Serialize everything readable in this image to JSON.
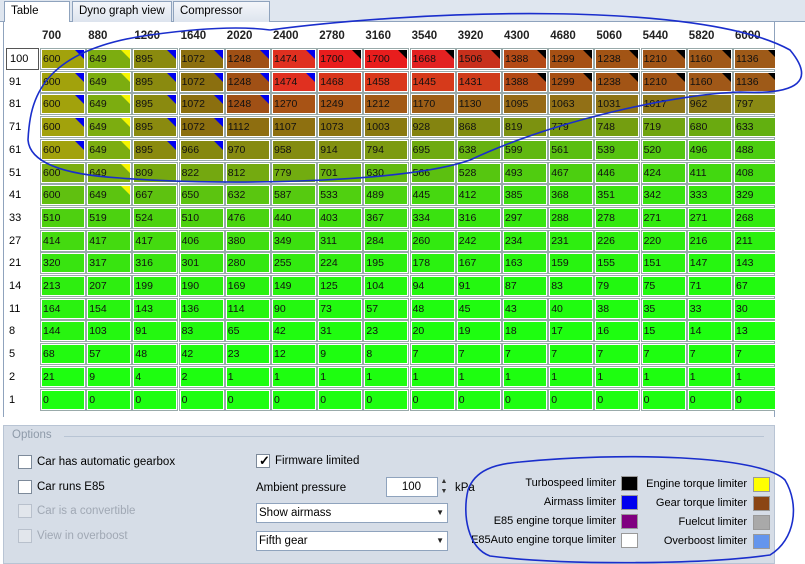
{
  "tabs": [
    "Table view",
    "Dyno graph view",
    "Compressor map"
  ],
  "active_tab": 0,
  "columns": [
    "700",
    "880",
    "1260",
    "1640",
    "2020",
    "2400",
    "2780",
    "3160",
    "3540",
    "3920",
    "4300",
    "4680",
    "5060",
    "5440",
    "5820",
    "6000"
  ],
  "rows": [
    {
      "label": "100",
      "values": [
        "600",
        "649",
        "895",
        "1072",
        "1248",
        "1474",
        "1700",
        "1700",
        "1668",
        "1506",
        "1388",
        "1299",
        "1238",
        "1210",
        "1160",
        "1136"
      ],
      "colors": [
        "#a2a20c",
        "#7cad10",
        "#8a8a0f",
        "#8b6f0f",
        "#a05015",
        "#e03020",
        "#e81d1d",
        "#e81d1d",
        "#e22222",
        "#c8301c",
        "#b34a16",
        "#a65014",
        "#a25415",
        "#a05416",
        "#a05818",
        "#9e5a18"
      ],
      "tris": [
        "#0000ee",
        "#f5f500",
        "#0000ee",
        "#0000ee",
        "#0000ee",
        "#0000ee",
        "#000000",
        "#000000",
        "#000000",
        "#000000",
        "#000000",
        "#000000",
        "#000000",
        "#000000",
        "#000000",
        "#000000"
      ]
    },
    {
      "label": "91",
      "values": [
        "600",
        "649",
        "895",
        "1072",
        "1248",
        "1474",
        "1468",
        "1458",
        "1445",
        "1431",
        "1388",
        "1299",
        "1238",
        "1210",
        "1160",
        "1136"
      ],
      "colors": [
        "#a2a20c",
        "#7cad10",
        "#8a8a0f",
        "#8b6f0f",
        "#a05015",
        "#e03020",
        "#d9361b",
        "#d9381b",
        "#d63a1b",
        "#d03c1b",
        "#b34a16",
        "#a65014",
        "#a25415",
        "#a05416",
        "#a05818",
        "#9e5a18"
      ],
      "tris": [
        "#0000ee",
        "#f5f500",
        "#0000ee",
        "#0000ee",
        "#0000ee",
        "#0000ee",
        "",
        "",
        "",
        "",
        "#000000",
        "#000000",
        "#000000",
        "#000000",
        "#000000",
        "#000000"
      ]
    },
    {
      "label": "81",
      "values": [
        "600",
        "649",
        "895",
        "1072",
        "1248",
        "1270",
        "1249",
        "1212",
        "1170",
        "1130",
        "1095",
        "1063",
        "1031",
        "1017",
        "962",
        "797"
      ],
      "colors": [
        "#a2a20c",
        "#7cad10",
        "#8a8a0f",
        "#8b6f0f",
        "#a05015",
        "#a85315",
        "#a65515",
        "#a25a16",
        "#9e5e16",
        "#9a6416",
        "#966a16",
        "#927016",
        "#8e7416",
        "#8c7616",
        "#8a7a16",
        "#8a8a14"
      ],
      "tris": [
        "#0000ee",
        "#f5f500",
        "#0000ee",
        "#0000ee",
        "#0000ee",
        "",
        "",
        "",
        "",
        "",
        "",
        "",
        "",
        "",
        "",
        ""
      ]
    },
    {
      "label": "71",
      "values": [
        "600",
        "649",
        "895",
        "1072",
        "1112",
        "1107",
        "1073",
        "1003",
        "928",
        "868",
        "819",
        "779",
        "748",
        "719",
        "680",
        "633"
      ],
      "colors": [
        "#a2a20c",
        "#7cad10",
        "#8a8a0f",
        "#8b6f0f",
        "#8e6e10",
        "#8e7010",
        "#8c7410",
        "#8a7a10",
        "#848410",
        "#808c10",
        "#7c9210",
        "#789810",
        "#749e10",
        "#70a410",
        "#6aaa10",
        "#62b010"
      ],
      "tris": [
        "#0000ee",
        "#f5f500",
        "#0000ee",
        "#0000ee",
        "",
        "",
        "",
        "",
        "",
        "",
        "",
        "",
        "",
        "",
        "",
        ""
      ]
    },
    {
      "label": "61",
      "values": [
        "600",
        "649",
        "895",
        "966",
        "970",
        "958",
        "914",
        "794",
        "695",
        "638",
        "599",
        "561",
        "539",
        "520",
        "496",
        "488"
      ],
      "colors": [
        "#a2a20c",
        "#7cad10",
        "#8a8a0f",
        "#86880f",
        "#868a10",
        "#848c10",
        "#829010",
        "#7c9a10",
        "#6eaa10",
        "#66b210",
        "#60b810",
        "#5abe10",
        "#56c210",
        "#52c610",
        "#4ecc10",
        "#4ccd10"
      ],
      "tris": [
        "#0000ee",
        "#f5f500",
        "#0000ee",
        "#0000ee",
        "",
        "",
        "",
        "",
        "",
        "",
        "",
        "",
        "",
        "",
        "",
        ""
      ]
    },
    {
      "label": "51",
      "values": [
        "600",
        "649",
        "809",
        "822",
        "812",
        "779",
        "701",
        "630",
        "566",
        "528",
        "493",
        "467",
        "446",
        "424",
        "411",
        "408"
      ],
      "colors": [
        "#7aae10",
        "#7cad10",
        "#76a810",
        "#74a810",
        "#74aa10",
        "#72ac10",
        "#6cb210",
        "#62ba10",
        "#5cc010",
        "#56c610",
        "#50cc10",
        "#4ccf10",
        "#48d210",
        "#44d610",
        "#42d810",
        "#42d810"
      ],
      "tris": [
        "",
        "#f5f500",
        "",
        "",
        "",
        "",
        "",
        "",
        "",
        "",
        "",
        "",
        "",
        "",
        "",
        ""
      ]
    },
    {
      "label": "41",
      "values": [
        "600",
        "649",
        "667",
        "650",
        "632",
        "587",
        "533",
        "489",
        "445",
        "412",
        "385",
        "368",
        "351",
        "342",
        "333",
        "329"
      ],
      "colors": [
        "#60c010",
        "#5cc410",
        "#5ec210",
        "#5cc410",
        "#5ac610",
        "#56ca10",
        "#50d010",
        "#4cd410",
        "#46d810",
        "#42dc10",
        "#3ede10",
        "#3ce010",
        "#3ae210",
        "#38e410",
        "#38e410",
        "#36e610"
      ],
      "tris": [
        "",
        "#f5f500",
        "",
        "",
        "",
        "",
        "",
        "",
        "",
        "",
        "",
        "",
        "",
        "",
        "",
        ""
      ]
    },
    {
      "label": "33",
      "values": [
        "510",
        "519",
        "524",
        "510",
        "476",
        "440",
        "403",
        "367",
        "334",
        "316",
        "297",
        "288",
        "278",
        "271",
        "271",
        "268"
      ],
      "colors": [
        "#4ed010",
        "#4cd210",
        "#4cd210",
        "#4ed010",
        "#4ad410",
        "#46d810",
        "#42dc10",
        "#3ede10",
        "#3ae210",
        "#38e410",
        "#36e610",
        "#34e810",
        "#34e810",
        "#32ea10",
        "#32ea10",
        "#32ea10"
      ],
      "tris": [
        "",
        "",
        "",
        "",
        "",
        "",
        "",
        "",
        "",
        "",
        "",
        "",
        "",
        "",
        "",
        ""
      ]
    },
    {
      "label": "27",
      "values": [
        "414",
        "417",
        "417",
        "406",
        "380",
        "349",
        "311",
        "284",
        "260",
        "242",
        "234",
        "231",
        "226",
        "220",
        "216",
        "211"
      ],
      "colors": [
        "#44da10",
        "#44da10",
        "#44da10",
        "#42dc10",
        "#40de10",
        "#3ce010",
        "#38e410",
        "#34e810",
        "#32ea10",
        "#30ec10",
        "#30ec10",
        "#2eee10",
        "#2eee10",
        "#2eee10",
        "#2eee10",
        "#2cf010"
      ],
      "tris": [
        "",
        "",
        "",
        "",
        "",
        "",
        "",
        "",
        "",
        "",
        "",
        "",
        "",
        "",
        "",
        ""
      ]
    },
    {
      "label": "21",
      "values": [
        "320",
        "317",
        "316",
        "301",
        "280",
        "255",
        "224",
        "195",
        "178",
        "167",
        "163",
        "159",
        "155",
        "151",
        "147",
        "143"
      ],
      "colors": [
        "#38e410",
        "#38e410",
        "#38e410",
        "#36e610",
        "#34e810",
        "#32ea10",
        "#30ec10",
        "#2cf010",
        "#2af210",
        "#2af210",
        "#28f410",
        "#28f410",
        "#28f410",
        "#28f410",
        "#26f610",
        "#26f610"
      ],
      "tris": [
        "",
        "",
        "",
        "",
        "",
        "",
        "",
        "",
        "",
        "",
        "",
        "",
        "",
        "",
        "",
        ""
      ]
    },
    {
      "label": "14",
      "values": [
        "213",
        "207",
        "199",
        "190",
        "169",
        "149",
        "125",
        "104",
        "94",
        "91",
        "87",
        "83",
        "79",
        "75",
        "71",
        "67"
      ],
      "colors": [
        "#2eee10",
        "#2eee10",
        "#2cf010",
        "#2cf010",
        "#2af210",
        "#28f410",
        "#26f610",
        "#24f810",
        "#24f810",
        "#24f810",
        "#22f810",
        "#22f810",
        "#22f810",
        "#22fa10",
        "#22fa10",
        "#22fa10"
      ],
      "tris": [
        "",
        "",
        "",
        "",
        "",
        "",
        "",
        "",
        "",
        "",
        "",
        "",
        "",
        "",
        "",
        ""
      ]
    },
    {
      "label": "11",
      "values": [
        "164",
        "154",
        "143",
        "136",
        "114",
        "90",
        "73",
        "57",
        "48",
        "45",
        "43",
        "40",
        "38",
        "35",
        "33",
        "30"
      ],
      "colors": [
        "#2af210",
        "#28f410",
        "#28f410",
        "#26f610",
        "#26f610",
        "#24f810",
        "#22fa10",
        "#22fa10",
        "#20fc10",
        "#20fc10",
        "#20fc10",
        "#20fc10",
        "#20fc10",
        "#20fc10",
        "#20fc10",
        "#20fc10"
      ],
      "tris": [
        "",
        "",
        "",
        "",
        "",
        "",
        "",
        "",
        "",
        "",
        "",
        "",
        "",
        "",
        "",
        ""
      ]
    },
    {
      "label": "8",
      "values": [
        "144",
        "103",
        "91",
        "83",
        "65",
        "42",
        "31",
        "23",
        "20",
        "19",
        "18",
        "17",
        "16",
        "15",
        "14",
        "13"
      ],
      "colors": [
        "#28f410",
        "#24f810",
        "#24f810",
        "#22f810",
        "#22fa10",
        "#20fc10",
        "#20fc10",
        "#1efe10",
        "#1efe10",
        "#1efe10",
        "#1efe10",
        "#1efe10",
        "#1efe10",
        "#1efe10",
        "#1efe10",
        "#1efe10"
      ],
      "tris": [
        "",
        "",
        "",
        "",
        "",
        "",
        "",
        "",
        "",
        "",
        "",
        "",
        "",
        "",
        "",
        ""
      ]
    },
    {
      "label": "5",
      "values": [
        "68",
        "57",
        "48",
        "42",
        "23",
        "12",
        "9",
        "8",
        "7",
        "7",
        "7",
        "7",
        "7",
        "7",
        "7",
        "7"
      ],
      "colors": [
        "#22fa10",
        "#22fa10",
        "#20fc10",
        "#20fc10",
        "#1efe10",
        "#1efe10",
        "#1efe10",
        "#1efe10",
        "#1efe10",
        "#1efe10",
        "#1efe10",
        "#1efe10",
        "#1efe10",
        "#1efe10",
        "#1efe10",
        "#1efe10"
      ],
      "tris": [
        "",
        "",
        "",
        "",
        "",
        "",
        "",
        "",
        "",
        "",
        "",
        "",
        "",
        "",
        "",
        ""
      ]
    },
    {
      "label": "2",
      "values": [
        "21",
        "9",
        "4",
        "2",
        "1",
        "1",
        "1",
        "1",
        "1",
        "1",
        "1",
        "1",
        "1",
        "1",
        "1",
        "1"
      ],
      "colors": [
        "#1efe10",
        "#1efe10",
        "#1efe10",
        "#1efe10",
        "#1efe10",
        "#1efe10",
        "#1efe10",
        "#1efe10",
        "#1efe10",
        "#1efe10",
        "#1efe10",
        "#1efe10",
        "#1efe10",
        "#1efe10",
        "#1efe10",
        "#1efe10"
      ],
      "tris": [
        "",
        "",
        "",
        "",
        "",
        "",
        "",
        "",
        "",
        "",
        "",
        "",
        "",
        "",
        "",
        ""
      ]
    },
    {
      "label": "1",
      "values": [
        "0",
        "0",
        "0",
        "0",
        "0",
        "0",
        "0",
        "0",
        "0",
        "0",
        "0",
        "0",
        "0",
        "0",
        "0",
        "0"
      ],
      "colors": [
        "#1efe10",
        "#1efe10",
        "#1efe10",
        "#1efe10",
        "#1efe10",
        "#1efe10",
        "#1efe10",
        "#1efe10",
        "#1efe10",
        "#1efe10",
        "#1efe10",
        "#1efe10",
        "#1efe10",
        "#1efe10",
        "#1efe10",
        "#1efe10"
      ],
      "tris": [
        "",
        "",
        "",
        "",
        "",
        "",
        "",
        "",
        "",
        "",
        "",
        "",
        "",
        "",
        "",
        ""
      ]
    }
  ],
  "selected_row": 0,
  "options": {
    "title": "Options",
    "automatic_gearbox": {
      "label": "Car has automatic gearbox",
      "checked": false
    },
    "runs_e85": {
      "label": "Car runs E85",
      "checked": false
    },
    "convertible": {
      "label": "Car is a convertible",
      "checked": false,
      "disabled": true
    },
    "overboost": {
      "label": "View in overboost",
      "checked": false,
      "disabled": true
    },
    "firmware_limited": {
      "label": "Firmware limited",
      "checked": true
    },
    "ambient_pressure": {
      "label": "Ambient pressure",
      "value": "100",
      "unit": "kPa"
    },
    "view_select": {
      "value": "Show airmass"
    },
    "gear_select": {
      "value": "Fifth gear"
    }
  },
  "legend": {
    "left": [
      {
        "label": "Turbospeed limiter",
        "color": "#000000"
      },
      {
        "label": "Airmass limiter",
        "color": "#0000ee"
      },
      {
        "label": "E85 engine torque limiter",
        "color": "#800080"
      },
      {
        "label": "E85Auto engine torque limiter",
        "color": "#ffffff"
      }
    ],
    "right": [
      {
        "label": "Engine torque limiter",
        "color": "#ffff00"
      },
      {
        "label": "Gear torque limiter",
        "color": "#8b4513"
      },
      {
        "label": "Fuelcut limiter",
        "color": "#a9a9a9"
      },
      {
        "label": "Overboost limiter",
        "color": "#6495ed"
      }
    ]
  },
  "annotation_color": "#1a2ecc"
}
